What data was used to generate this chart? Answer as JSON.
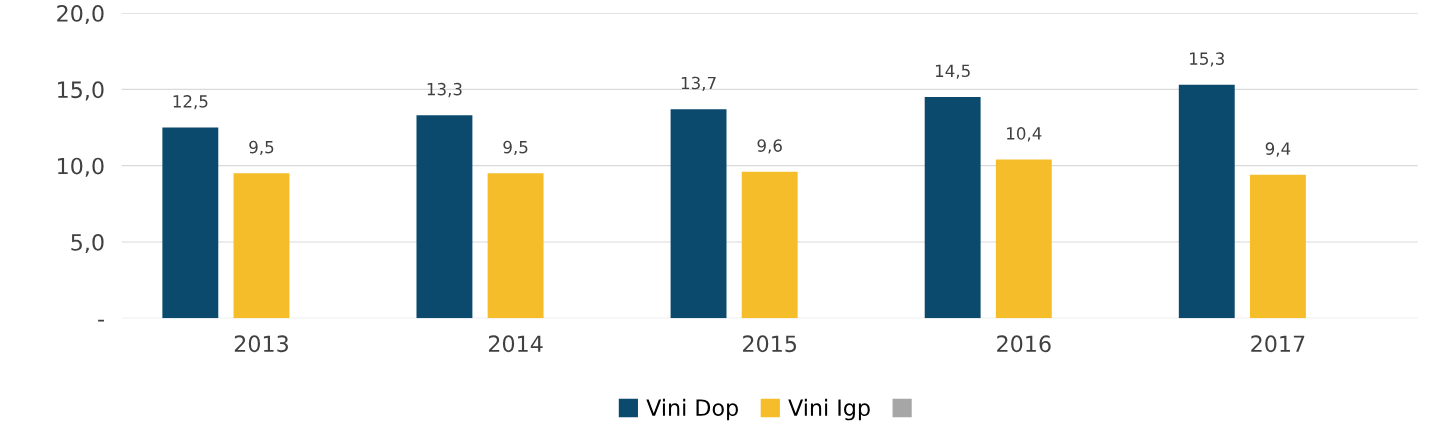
{
  "chart_data": {
    "type": "bar",
    "categories": [
      "2013",
      "2014",
      "2015",
      "2016",
      "2017"
    ],
    "series": [
      {
        "name": "Vini Dop",
        "color": "#0b4a6d",
        "values": [
          12.5,
          13.3,
          13.7,
          14.5,
          15.3
        ],
        "value_labels": [
          "12,5",
          "13,3",
          "13,7",
          "14,5",
          "15,3"
        ]
      },
      {
        "name": "Vini Igp",
        "color": "#f4bd29",
        "values": [
          9.5,
          9.5,
          9.6,
          10.4,
          9.4
        ],
        "value_labels": [
          "9,5",
          "9,5",
          "9,6",
          "10,4",
          "9,4"
        ]
      },
      {
        "color": "#a6a6a6",
        "values": [
          null,
          null,
          null,
          null,
          null
        ]
      }
    ],
    "ylim": [
      0,
      20
    ],
    "yticks": [
      {
        "value": 0,
        "label": "-"
      },
      {
        "value": 5,
        "label": "5,0"
      },
      {
        "value": 10,
        "label": "10,0"
      },
      {
        "value": 15,
        "label": "15,0"
      },
      {
        "value": 20,
        "label": "20,0"
      }
    ],
    "grid": "y",
    "legend": "bottom"
  }
}
